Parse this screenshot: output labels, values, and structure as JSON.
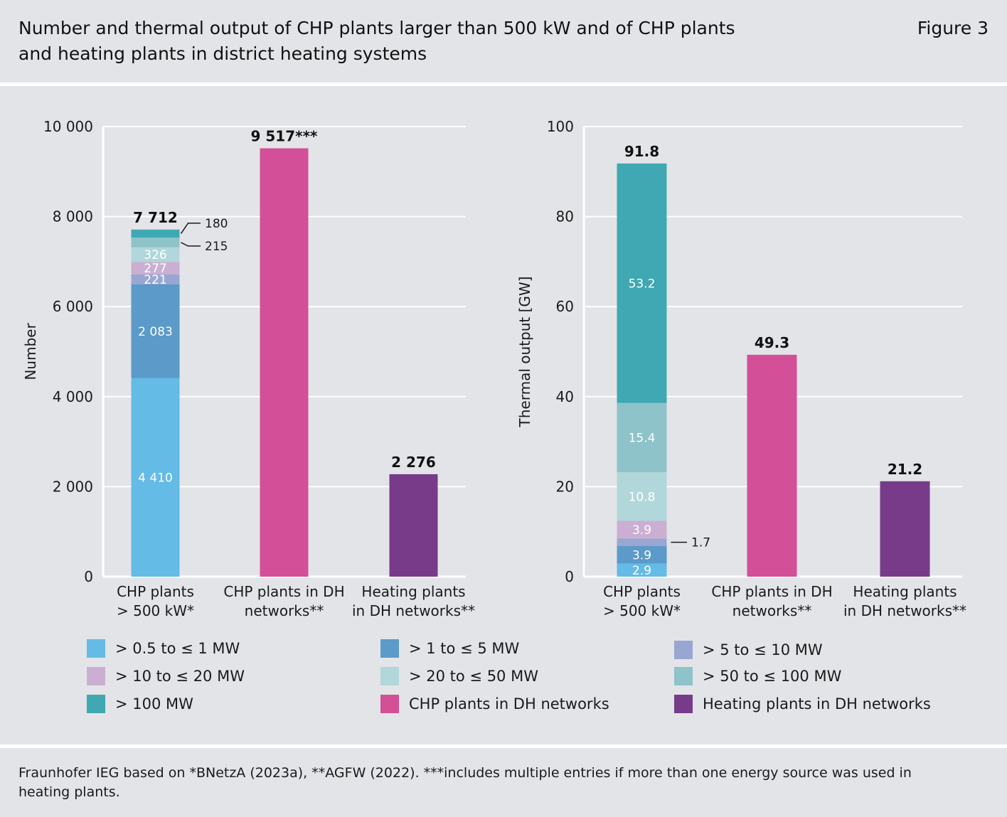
{
  "header": {
    "title": "Number and thermal output of CHP plants larger than 500 kW and of CHP plants and heating plants in district heating systems",
    "figure_label": "Figure 3"
  },
  "colors": {
    "c1": "#63bbe6",
    "c2": "#5b9ac9",
    "c3": "#9aa6d2",
    "c4": "#cbafd2",
    "c5": "#b1d7da",
    "c6": "#8dc3c9",
    "c7": "#3fa8b2",
    "chp_dh": "#d34f97",
    "heat_dh": "#773b8a"
  },
  "chart_data": [
    {
      "type": "bar",
      "stacked": true,
      "ylabel": "Number",
      "ylim": [
        0,
        10000
      ],
      "yticks": [
        "0",
        "2 000",
        "4 000",
        "6 000",
        "8 000",
        "10 000"
      ],
      "grid": true,
      "categories": [
        "CHP plants > 500 kW*",
        "CHP plants in DH networks**",
        "Heating plants in DH networks**"
      ],
      "category_lines": [
        [
          "CHP plants",
          "> 500 kW*"
        ],
        [
          "CHP plants in DH",
          "networks**"
        ],
        [
          "Heating plants",
          "in DH networks**"
        ]
      ],
      "totals": [
        7712,
        9517,
        2276
      ],
      "total_labels": [
        "7 712",
        "9 517***",
        "2 276"
      ],
      "bars": [
        {
          "segments": [
            {
              "key": "c1",
              "value": 4410,
              "label": "4 410"
            },
            {
              "key": "c2",
              "value": 2083,
              "label": "2 083"
            },
            {
              "key": "c3",
              "value": 221,
              "label": "221"
            },
            {
              "key": "c4",
              "value": 277,
              "label": "277"
            },
            {
              "key": "c5",
              "value": 326,
              "label": "326"
            },
            {
              "key": "c6",
              "value": 215,
              "label": "215",
              "callout": true
            },
            {
              "key": "c7",
              "value": 180,
              "label": "180",
              "callout": true
            }
          ]
        },
        {
          "segments": [
            {
              "key": "chp_dh",
              "value": 9517,
              "label": ""
            }
          ]
        },
        {
          "segments": [
            {
              "key": "heat_dh",
              "value": 2276,
              "label": ""
            }
          ]
        }
      ]
    },
    {
      "type": "bar",
      "stacked": true,
      "ylabel": "Thermal output [GW]",
      "ylim": [
        0,
        100
      ],
      "yticks": [
        "0",
        "20",
        "40",
        "60",
        "80",
        "100"
      ],
      "grid": true,
      "categories": [
        "CHP plants > 500 kW*",
        "CHP plants in DH networks**",
        "Heating plants in DH networks**"
      ],
      "category_lines": [
        [
          "CHP plants",
          "> 500 kW*"
        ],
        [
          "CHP plants in DH",
          "networks**"
        ],
        [
          "Heating plants",
          "in DH networks**"
        ]
      ],
      "totals": [
        91.8,
        49.3,
        21.2
      ],
      "total_labels": [
        "91.8",
        "49.3",
        "21.2"
      ],
      "bars": [
        {
          "segments": [
            {
              "key": "c1",
              "value": 2.9,
              "label": "2.9"
            },
            {
              "key": "c2",
              "value": 3.9,
              "label": "3.9"
            },
            {
              "key": "c3",
              "value": 1.7,
              "label": "1.7",
              "callout": true
            },
            {
              "key": "c4",
              "value": 3.9,
              "label": "3.9"
            },
            {
              "key": "c5",
              "value": 10.8,
              "label": "10.8"
            },
            {
              "key": "c6",
              "value": 15.4,
              "label": "15.4"
            },
            {
              "key": "c7",
              "value": 53.2,
              "label": "53.2"
            }
          ]
        },
        {
          "segments": [
            {
              "key": "chp_dh",
              "value": 49.3,
              "label": ""
            }
          ]
        },
        {
          "segments": [
            {
              "key": "heat_dh",
              "value": 21.2,
              "label": ""
            }
          ]
        }
      ]
    }
  ],
  "legend": [
    {
      "key": "c1",
      "label": "> 0.5 to ≤ 1 MW"
    },
    {
      "key": "c2",
      "label": "> 1 to ≤ 5 MW"
    },
    {
      "key": "c3",
      "label": "> 5 to ≤ 10 MW"
    },
    {
      "key": "c4",
      "label": "> 10 to ≤ 20 MW"
    },
    {
      "key": "c5",
      "label": "> 20 to ≤ 50 MW"
    },
    {
      "key": "c6",
      "label": "> 50 to ≤ 100 MW"
    },
    {
      "key": "c7",
      "label": "> 100 MW"
    },
    {
      "key": "chp_dh",
      "label": "CHP plants in DH networks"
    },
    {
      "key": "heat_dh",
      "label": "Heating plants in DH networks"
    }
  ],
  "footer": {
    "source": "Fraunhofer IEG based on *BNetzA (2023a), **AGFW (2022). ***includes multiple entries if more than one energy source was used in heating plants."
  }
}
